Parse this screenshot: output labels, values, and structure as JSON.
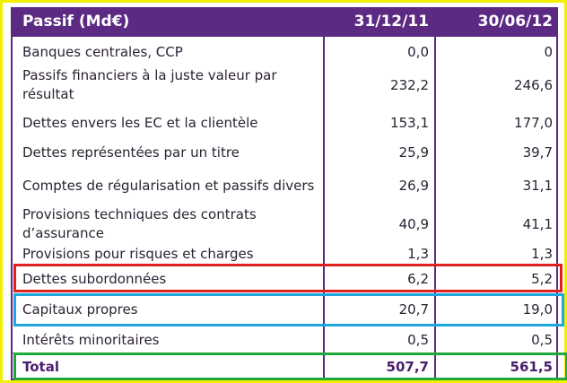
{
  "table": {
    "header": [
      "Passif (Md€)",
      "31/12/11",
      "30/06/12"
    ],
    "rows": [
      [
        "Banques centrales, CCP",
        "0,0",
        "0"
      ],
      [
        "Passifs financiers à la juste valeur par résultat",
        "232,2",
        "246,6"
      ],
      [
        "Dettes envers les EC et la clientèle",
        "153,1",
        "177,0"
      ],
      [
        "Dettes représentées par un titre",
        "25,9",
        "39,7"
      ],
      [
        "Comptes de régularisation et passifs divers",
        "26,9",
        "31,1"
      ],
      [
        "Provisions techniques des contrats d’assurance",
        "40,9",
        "41,1"
      ],
      [
        "Provisions pour risques et charges",
        "1,3",
        "1,3"
      ],
      [
        "Dettes subordonnées",
        "6,2",
        "5,2"
      ],
      [
        "Capitaux propres",
        "20,7",
        "19,0"
      ],
      [
        "Intérêts minoritaires",
        "0,5",
        "0,5"
      ],
      [
        "Total",
        "507,7",
        "561,5"
      ]
    ]
  }
}
